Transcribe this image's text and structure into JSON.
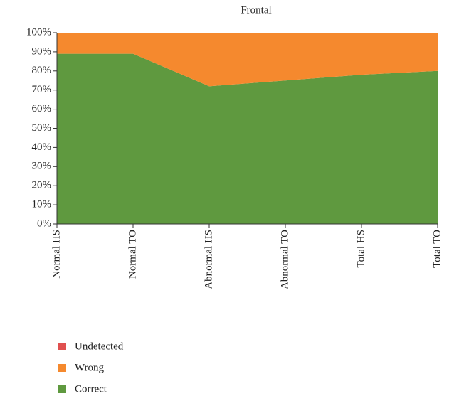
{
  "chart_data": {
    "type": "stacked_area",
    "title": "Frontal",
    "categories": [
      "Normal HS",
      "Normal TO",
      "Abnormal HS",
      "Abnormal TO",
      "Total HS",
      "Total TO"
    ],
    "series": [
      {
        "name": "Undetected",
        "color": "#e0504f",
        "values": [
          0,
          0,
          0,
          0,
          0,
          0
        ]
      },
      {
        "name": "Wrong",
        "color": "#f5892e",
        "values": [
          11,
          11,
          28,
          25,
          22,
          20
        ]
      },
      {
        "name": "Correct",
        "color": "#5f993f",
        "values": [
          89,
          89,
          72,
          75,
          78,
          80
        ]
      }
    ],
    "ylim": [
      0,
      100
    ],
    "yticks": [
      {
        "value": 0,
        "label": "0%"
      },
      {
        "value": 10,
        "label": "10%"
      },
      {
        "value": 20,
        "label": "20%"
      },
      {
        "value": 30,
        "label": "30%"
      },
      {
        "value": 40,
        "label": "40%"
      },
      {
        "value": 50,
        "label": "50%"
      },
      {
        "value": 60,
        "label": "60%"
      },
      {
        "value": 70,
        "label": "70%"
      },
      {
        "value": 80,
        "label": "80%"
      },
      {
        "value": 90,
        "label": "90%"
      },
      {
        "value": 100,
        "label": "100%"
      }
    ]
  }
}
